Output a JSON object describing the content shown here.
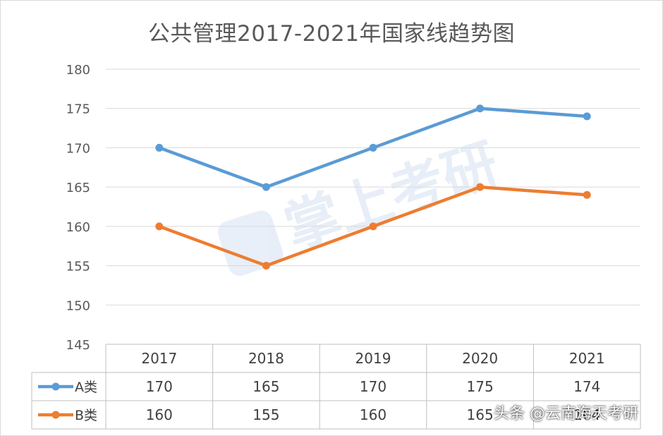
{
  "chart_data": {
    "type": "line",
    "title": "公共管理2017-2021年国家线趋势图",
    "categories": [
      "2017",
      "2018",
      "2019",
      "2020",
      "2021"
    ],
    "series": [
      {
        "name": "A类",
        "values": [
          170,
          165,
          170,
          175,
          174
        ],
        "color": "#5b9bd5"
      },
      {
        "name": "B类",
        "values": [
          160,
          155,
          160,
          165,
          164
        ],
        "color": "#ed7d31"
      }
    ],
    "yticks": [
      145,
      150,
      155,
      160,
      165,
      170,
      175,
      180
    ],
    "ylim": [
      145,
      180
    ],
    "grid": true,
    "legend": "data-table",
    "data_table": true,
    "watermark_logo_text": "掌上考研"
  },
  "watermark": {
    "text": "头条 @云南海天考研"
  }
}
